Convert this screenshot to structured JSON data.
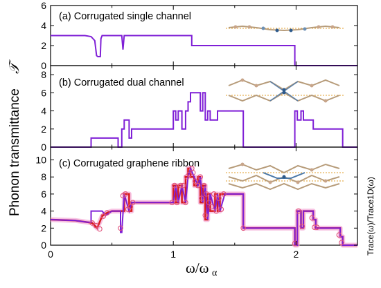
{
  "figure": {
    "ylabel": "Phonon transmittance",
    "ylabel_symbol": "𝒯",
    "xlabel": "ω/ω",
    "xlabel_sub": "α",
    "right_label": "Trace(ω)/Trace1D(ω)"
  },
  "chart_data": [
    {
      "type": "line",
      "title": "(a) Corrugated single channel",
      "xlim": [
        0,
        2.5
      ],
      "ylim": [
        0,
        6
      ],
      "yticks": [
        "0",
        "2",
        "4",
        "6"
      ],
      "series": [
        {
          "color": "#7f1fd6",
          "x": [
            0,
            0.28,
            0.33,
            0.36,
            0.375,
            0.385,
            0.405,
            0.41,
            0.42,
            0.58,
            0.59,
            0.6,
            0.61,
            1.15,
            1.15,
            1.99,
            1.99,
            2.5
          ],
          "y": [
            3,
            3,
            2.9,
            2.5,
            1.0,
            0.9,
            0.9,
            2.7,
            3,
            3,
            1.6,
            3,
            3,
            3,
            2,
            2,
            0,
            0
          ]
        }
      ]
    },
    {
      "type": "line",
      "title": "(b) Corrugated dual channel",
      "xlim": [
        0,
        2.5
      ],
      "ylim": [
        0,
        9
      ],
      "yticks": [
        "0",
        "2",
        "4",
        "6",
        "8"
      ],
      "series": [
        {
          "color": "#7f1fd6",
          "x": [
            0,
            0.33,
            0.33,
            0.55,
            0.55,
            0.58,
            0.58,
            0.6,
            0.6,
            0.64,
            0.64,
            0.66,
            0.66,
            1.0,
            1.0,
            1.02,
            1.02,
            1.04,
            1.04,
            1.07,
            1.07,
            1.1,
            1.1,
            1.12,
            1.12,
            1.14,
            1.14,
            1.22,
            1.22,
            1.24,
            1.24,
            1.26,
            1.26,
            1.28,
            1.28,
            1.3,
            1.3,
            1.36,
            1.36,
            1.38,
            1.38,
            1.57,
            1.57,
            1.99,
            1.99,
            2.01,
            2.01,
            2.04,
            2.04,
            2.06,
            2.06,
            2.14,
            2.14,
            2.18,
            2.18,
            2.38,
            2.38,
            2.5
          ],
          "y": [
            0,
            0,
            1,
            1,
            0,
            0,
            2,
            2,
            3,
            3,
            1,
            1,
            2,
            2,
            4,
            4,
            3,
            3,
            4,
            4,
            2,
            2,
            4,
            4,
            5,
            5,
            6,
            6,
            4,
            4,
            6,
            6,
            3,
            3,
            4,
            4,
            3,
            3,
            4,
            4,
            4,
            4,
            0,
            0,
            4,
            4,
            3,
            3,
            4,
            4,
            3,
            3,
            2,
            2,
            2,
            2,
            0,
            0
          ]
        }
      ]
    },
    {
      "type": "line",
      "title": "(c) Corrugated graphene ribbon",
      "xlim": [
        0,
        2.5
      ],
      "ylim": [
        0,
        11.5
      ],
      "yticks": [
        "0",
        "2",
        "4",
        "6",
        "8",
        "10"
      ],
      "series": [
        {
          "color": "#7f1fd6",
          "x": [
            0,
            0.2,
            0.3,
            0.33,
            0.33,
            0.42,
            0.45,
            0.5,
            0.55,
            0.57,
            0.57,
            0.58,
            0.6,
            0.6,
            0.64,
            0.64,
            0.66,
            0.66,
            1.0,
            1.0,
            1.02,
            1.02,
            1.04,
            1.04,
            1.07,
            1.07,
            1.1,
            1.1,
            1.12,
            1.12,
            1.14,
            1.14,
            1.17,
            1.17,
            1.2,
            1.2,
            1.22,
            1.22,
            1.24,
            1.24,
            1.26,
            1.26,
            1.28,
            1.28,
            1.3,
            1.3,
            1.34,
            1.34,
            1.36,
            1.36,
            1.38,
            1.38,
            1.42,
            1.42,
            1.57,
            1.57,
            1.99,
            1.99,
            2.01,
            2.01,
            2.04,
            2.04,
            2.06,
            2.06,
            2.14,
            2.14,
            2.16,
            2.16,
            2.18,
            2.18,
            2.36,
            2.36,
            2.38,
            2.38,
            2.5
          ],
          "y": [
            3,
            2.9,
            2.7,
            2.7,
            4,
            4,
            3.5,
            4,
            4,
            4,
            1.5,
            1.5,
            6,
            6,
            4,
            4,
            5,
            5,
            5,
            5,
            7,
            7,
            5,
            5,
            7,
            7,
            5,
            5,
            8,
            8,
            9,
            9,
            8,
            8,
            7,
            7,
            8,
            8,
            5,
            5,
            7,
            7,
            3,
            3,
            6,
            6,
            4,
            4,
            6,
            6,
            4,
            4,
            6,
            6,
            6,
            2,
            2,
            0,
            0,
            4,
            4,
            2,
            2,
            4,
            4,
            3,
            3,
            2,
            2,
            2,
            2,
            1,
            1,
            0,
            0
          ]
        },
        {
          "color": "#d81b1b",
          "x": [
            0,
            0.2,
            0.3,
            0.34,
            0.38,
            0.42,
            0.46,
            0.5,
            0.55,
            0.58,
            0.6,
            0.6,
            0.64,
            0.64,
            0.66,
            0.66,
            1.0,
            1.0,
            1.02,
            1.02,
            1.04,
            1.04,
            1.07,
            1.07,
            1.1,
            1.1,
            1.12,
            1.12,
            1.14,
            1.14,
            1.17,
            1.17,
            1.2,
            1.2,
            1.22,
            1.22,
            1.24,
            1.24,
            1.26,
            1.26,
            1.28,
            1.28,
            1.3,
            1.3,
            1.34,
            1.34,
            1.36,
            1.36,
            1.38,
            1.38,
            1.42,
            1.42,
            1.57,
            1.57,
            1.99,
            1.99,
            2.01,
            2.01,
            2.04,
            2.04,
            2.06,
            2.06,
            2.14,
            2.14,
            2.16,
            2.16,
            2.18,
            2.18,
            2.36,
            2.36,
            2.38,
            2.38,
            2.5
          ],
          "y": [
            3,
            2.9,
            2.7,
            2.6,
            2.0,
            3.4,
            3.8,
            4,
            4,
            4,
            4,
            6,
            6,
            4,
            4,
            5,
            5,
            7,
            7,
            5,
            5,
            7,
            7,
            5,
            5,
            8,
            8,
            9,
            9,
            8,
            8,
            7,
            7,
            8,
            8,
            5,
            5,
            7,
            7,
            3,
            3,
            6,
            6,
            4,
            4,
            6,
            6,
            4,
            4,
            6,
            6,
            6,
            6,
            2,
            2,
            0,
            0,
            4,
            4,
            2,
            2,
            4,
            4,
            3,
            3,
            2,
            2,
            2,
            2,
            1,
            1,
            0,
            0
          ]
        },
        {
          "type": "scatter",
          "color": "#e0507a",
          "x": [
            0.34,
            0.37,
            0.4,
            0.43,
            0.46,
            0.57,
            0.59,
            0.61,
            0.63,
            0.65,
            0.67,
            0.99,
            1.01,
            1.03,
            1.06,
            1.08,
            1.1,
            1.11,
            1.13,
            1.15,
            1.16,
            1.18,
            1.2,
            1.22,
            1.23,
            1.25,
            1.26,
            1.27,
            1.29,
            1.31,
            1.33,
            1.35,
            1.37,
            1.39,
            1.41,
            1.57,
            1.99,
            2.02,
            2.05,
            2.13,
            2.15,
            2.17,
            2.35,
            2.37
          ],
          "y": [
            2.6,
            2.3,
            1.9,
            3.4,
            3.8,
            2.0,
            5.8,
            6,
            4.2,
            4.5,
            5,
            5,
            7,
            5,
            7,
            7,
            5,
            8,
            8.3,
            9,
            8.5,
            7.5,
            7,
            8,
            5.5,
            7,
            3.5,
            6,
            5,
            4.5,
            6,
            4,
            5.5,
            4.2,
            6,
            2,
            0.2,
            4,
            2.2,
            3.2,
            2.1,
            2.1,
            1.2,
            0.3
          ]
        }
      ]
    }
  ],
  "xticks": [
    "0",
    "1",
    "2"
  ]
}
